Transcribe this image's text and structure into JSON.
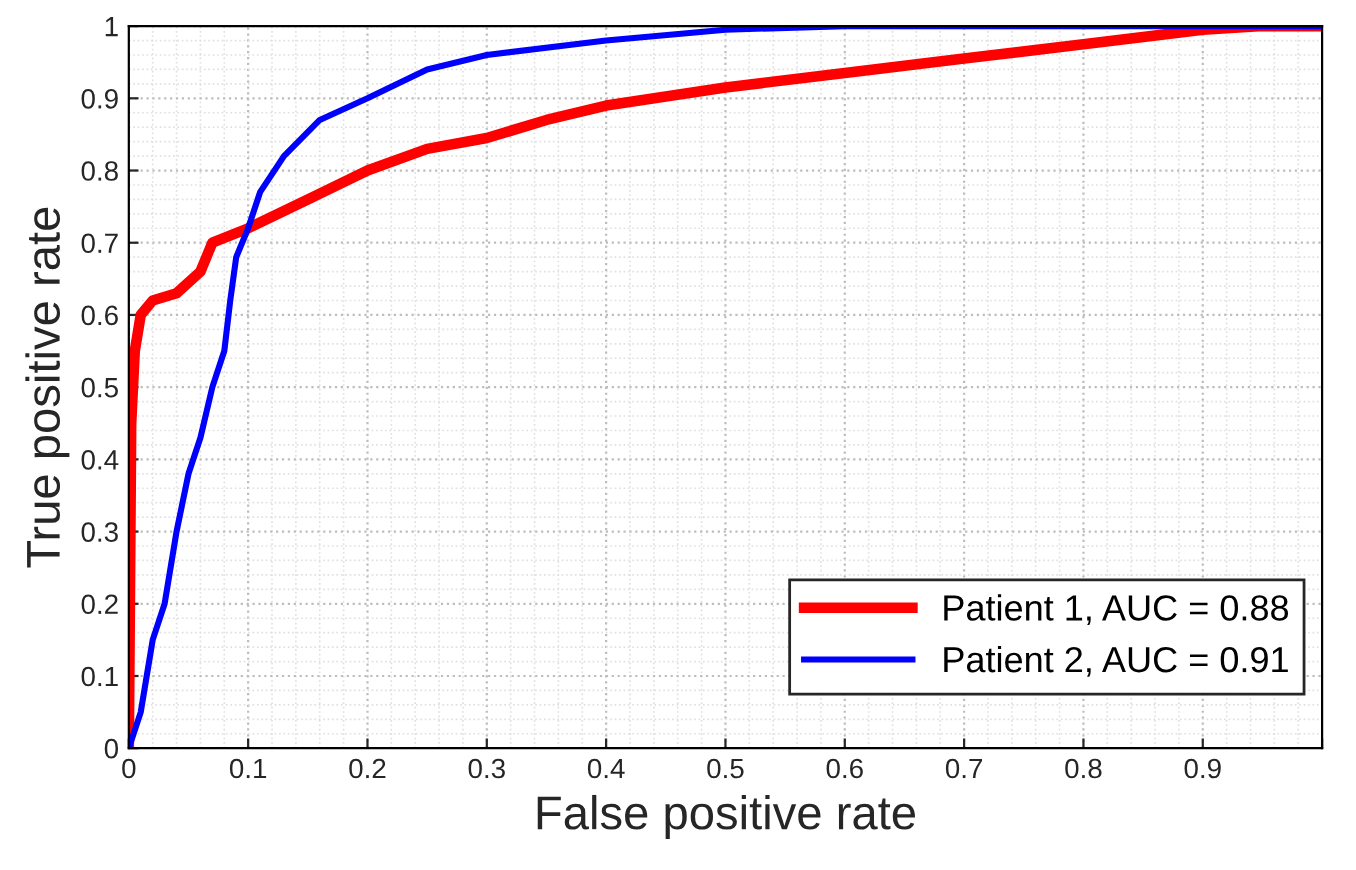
{
  "chart_data": {
    "type": "line",
    "xlabel": "False positive rate",
    "ylabel": "True positive rate",
    "xlim": [
      0,
      1
    ],
    "ylim": [
      0,
      1
    ],
    "xticks": [
      0,
      0.1,
      0.2,
      0.3,
      0.4,
      0.5,
      0.6,
      0.7,
      0.8,
      0.9,
      {
        "value": 1,
        "label": null
      }
    ],
    "yticks": [
      0,
      0.1,
      0.2,
      0.3,
      0.4,
      0.5,
      0.6,
      0.7,
      0.8,
      0.9,
      1
    ],
    "grid": true,
    "legend": "bottom right",
    "marker": "none",
    "line_style": "solid",
    "series": [
      {
        "name": "Patient 1, AUC = 0.88",
        "color": "#ff0000",
        "x": [
          0,
          0.002,
          0.005,
          0.01,
          0.02,
          0.04,
          0.06,
          0.07,
          0.1,
          0.15,
          0.2,
          0.25,
          0.3,
          0.35,
          0.4,
          0.5,
          0.6,
          0.7,
          0.8,
          0.9,
          0.95,
          1
        ],
        "values": [
          0,
          0.45,
          0.55,
          0.6,
          0.62,
          0.63,
          0.66,
          0.7,
          0.72,
          0.76,
          0.8,
          0.83,
          0.845,
          0.87,
          0.89,
          0.915,
          0.935,
          0.955,
          0.975,
          0.995,
          1,
          1
        ]
      },
      {
        "name": "Patient 2, AUC = 0.91",
        "color": "#0000ff",
        "x": [
          0,
          0.01,
          0.02,
          0.03,
          0.04,
          0.05,
          0.06,
          0.07,
          0.08,
          0.085,
          0.09,
          0.1,
          0.11,
          0.13,
          0.16,
          0.2,
          0.25,
          0.3,
          0.4,
          0.5,
          0.6,
          1
        ],
        "values": [
          0,
          0.05,
          0.15,
          0.2,
          0.3,
          0.38,
          0.43,
          0.5,
          0.55,
          0.62,
          0.68,
          0.72,
          0.77,
          0.82,
          0.87,
          0.9,
          0.94,
          0.96,
          0.98,
          0.995,
          1,
          1
        ]
      }
    ]
  }
}
